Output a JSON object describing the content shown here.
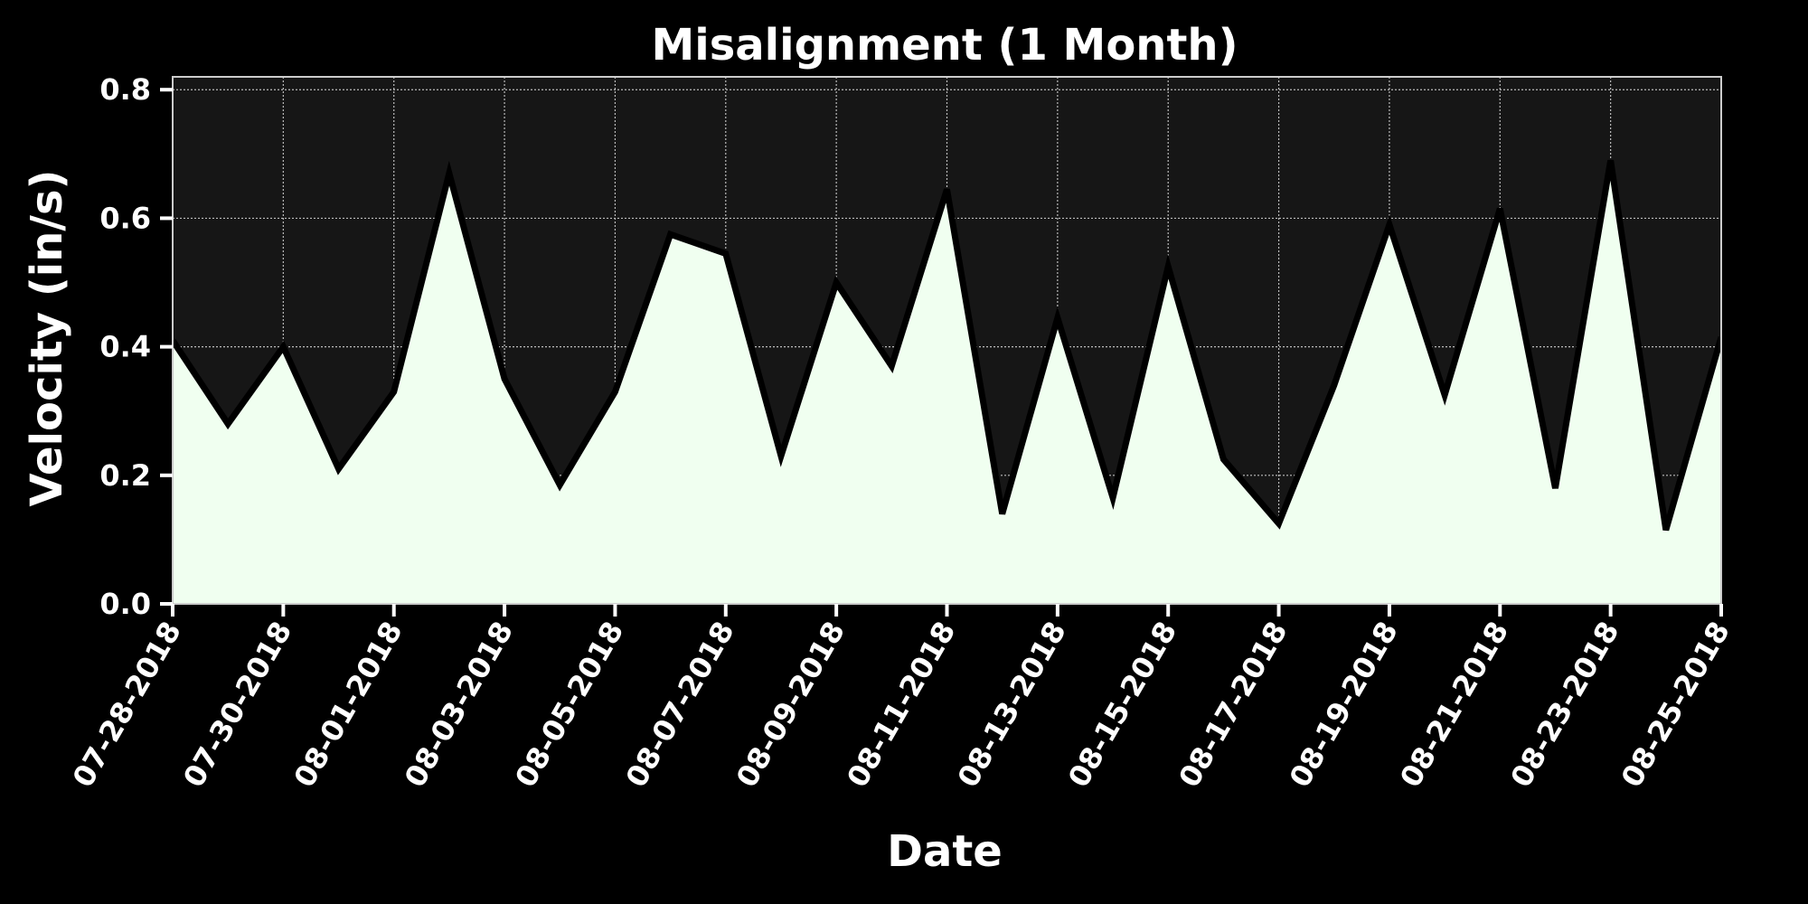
{
  "chart_data": {
    "type": "area",
    "title": "Misalignment (1 Month)",
    "xlabel": "Date",
    "ylabel": "Velocity (in/s)",
    "ylim": [
      0.0,
      0.82
    ],
    "y_ticks": [
      "0.0",
      "0.2",
      "0.4",
      "0.6",
      "0.8"
    ],
    "x_tick_labels": [
      "07-28-2018",
      "07-30-2018",
      "08-01-2018",
      "08-03-2018",
      "08-05-2018",
      "08-07-2018",
      "08-09-2018",
      "08-11-2018",
      "08-13-2018",
      "08-15-2018",
      "08-17-2018",
      "08-19-2018",
      "08-21-2018",
      "08-23-2018",
      "08-25-2018"
    ],
    "x": [
      "07-28-2018",
      "07-29-2018",
      "07-30-2018",
      "07-31-2018",
      "08-01-2018",
      "08-02-2018",
      "08-03-2018",
      "08-04-2018",
      "08-05-2018",
      "08-06-2018",
      "08-07-2018",
      "08-08-2018",
      "08-09-2018",
      "08-10-2018",
      "08-11-2018",
      "08-12-2018",
      "08-13-2018",
      "08-14-2018",
      "08-15-2018",
      "08-16-2018",
      "08-17-2018",
      "08-18-2018",
      "08-19-2018",
      "08-20-2018",
      "08-21-2018",
      "08-22-2018",
      "08-23-2018",
      "08-24-2018",
      "08-25-2018"
    ],
    "values": [
      0.41,
      0.28,
      0.4,
      0.21,
      0.33,
      0.67,
      0.35,
      0.185,
      0.33,
      0.575,
      0.545,
      0.23,
      0.5,
      0.37,
      0.645,
      0.14,
      0.445,
      0.165,
      0.525,
      0.225,
      0.125,
      0.34,
      0.59,
      0.325,
      0.615,
      0.18,
      0.69,
      0.115,
      0.415
    ],
    "grid": true,
    "colors": {
      "background": "#000000",
      "plot_background": "#161616",
      "fill": "#f0fff0",
      "line": "#000000",
      "grid": "#bbbbbb",
      "text": "#ffffff"
    }
  }
}
